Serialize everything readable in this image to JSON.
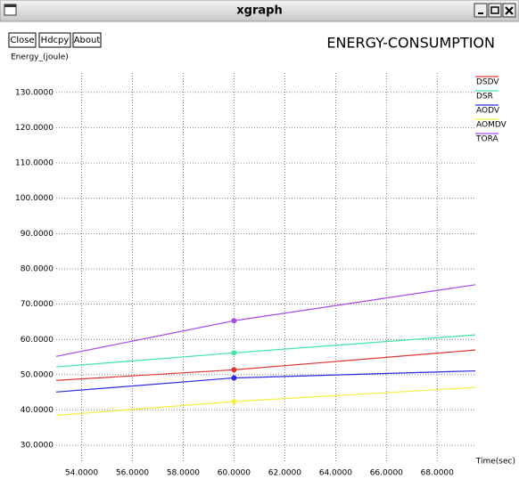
{
  "window_title": "xgraph",
  "buttons": [
    "Close",
    "Hdcpy",
    "About"
  ],
  "chart_data": {
    "type": "line",
    "title": "ENERGY-CONSUMPTION",
    "y_label": "Energy_(joule)",
    "x_label": "Time(sec)",
    "x": [
      53,
      60,
      69.5
    ],
    "series": [
      {
        "name": "DSDV",
        "color": "#e03434",
        "values": [
          48.4,
          51.4,
          57.0
        ]
      },
      {
        "name": "DSR",
        "color": "#3ee6a0",
        "values": [
          52.2,
          56.2,
          61.3
        ]
      },
      {
        "name": "AODV",
        "color": "#2a2ae0",
        "values": [
          45.1,
          49.1,
          51.1
        ]
      },
      {
        "name": "AOMDV",
        "color": "#f2f040",
        "values": [
          38.5,
          42.4,
          46.4
        ]
      },
      {
        "name": "TORA",
        "color": "#a848e6",
        "values": [
          55.2,
          65.3,
          75.5
        ]
      }
    ],
    "xlim": [
      53,
      69.5
    ],
    "ylim": [
      25,
      135.5
    ],
    "xticks": [
      {
        "value": 54,
        "label": "54.0000"
      },
      {
        "value": 56,
        "label": "56.0000"
      },
      {
        "value": 58,
        "label": "58.0000"
      },
      {
        "value": 60,
        "label": "60.0000"
      },
      {
        "value": 62,
        "label": "62.0000"
      },
      {
        "value": 64,
        "label": "64.0000"
      },
      {
        "value": 66,
        "label": "66.0000"
      },
      {
        "value": 68,
        "label": "68.0000"
      }
    ],
    "yticks": [
      {
        "value": 30,
        "label": "30.0000"
      },
      {
        "value": 40,
        "label": "40.0000"
      },
      {
        "value": 50,
        "label": "50.0000"
      },
      {
        "value": 60,
        "label": "60.0000"
      },
      {
        "value": 70,
        "label": "70.0000"
      },
      {
        "value": 80,
        "label": "80.0000"
      },
      {
        "value": 90,
        "label": "90.0000"
      },
      {
        "value": 100,
        "label": "100.0000"
      },
      {
        "value": 110,
        "label": "110.0000"
      },
      {
        "value": 120,
        "label": "120.0000"
      },
      {
        "value": 130,
        "label": "130.0000"
      }
    ],
    "grid": true,
    "legend": "top-right"
  }
}
